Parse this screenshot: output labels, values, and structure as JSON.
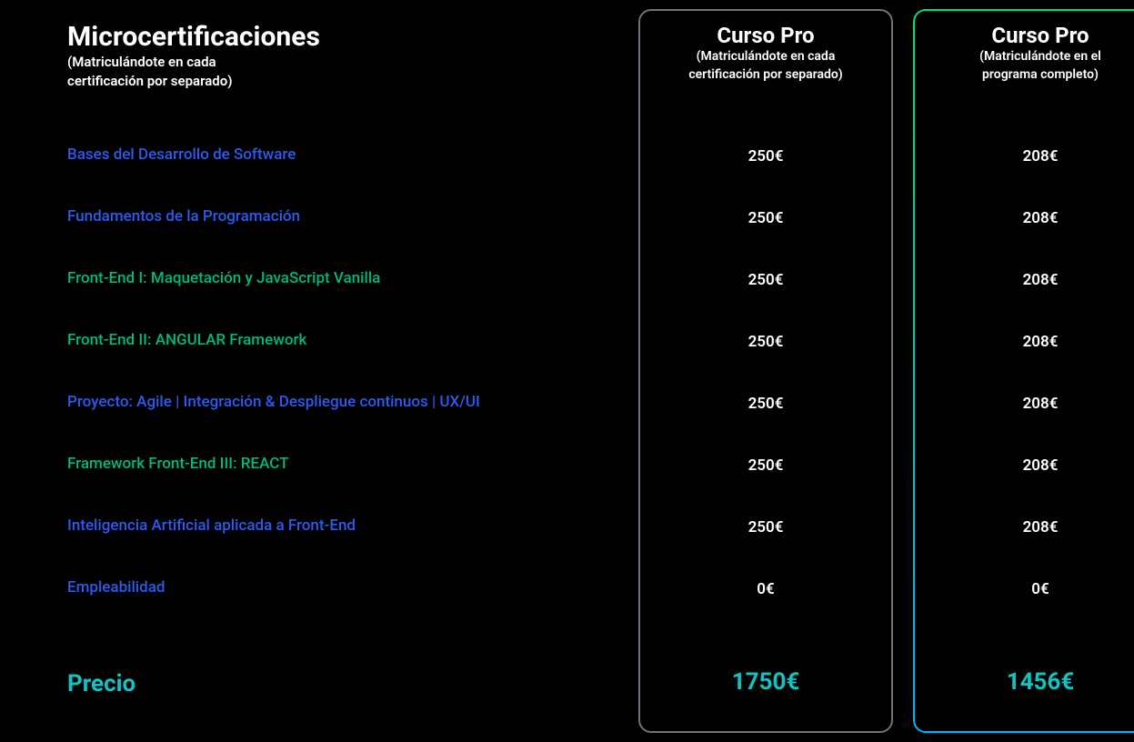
{
  "colors": {
    "background": "#000000",
    "text_white": "#ffffff",
    "link_blue": "#2e5af0",
    "link_green": "#00b97e",
    "total_teal": "#13c2c2",
    "border_gray": "#6b7280",
    "gradient_top": "#00e07a",
    "gradient_bottom": "#00b3ff"
  },
  "labels_column": {
    "title": "Microcertificaciones",
    "subtitle_line1": "(Matriculándote en cada",
    "subtitle_line2": "certificación por separado)"
  },
  "separate_column": {
    "title": "Curso Pro",
    "subtitle_line1": "(Matriculándote en cada",
    "subtitle_line2": "certificación por separado)"
  },
  "full_column": {
    "title": "Curso Pro",
    "subtitle_line1": "(Matriculándote en el",
    "subtitle_line2": "programa completo)"
  },
  "rows": [
    {
      "label": "Bases del Desarrollo de Software",
      "color": "#2e5af0",
      "separate_price": "250€",
      "full_price": "208€"
    },
    {
      "label": "Fundamentos de la Programación",
      "color": "#2e5af0",
      "separate_price": "250€",
      "full_price": "208€"
    },
    {
      "label": "Front-End I: Maquetación y JavaScript Vanilla",
      "color": "#00b97e",
      "separate_price": "250€",
      "full_price": "208€"
    },
    {
      "label": "Front-End II: ANGULAR Framework",
      "color": "#00b97e",
      "separate_price": "250€",
      "full_price": "208€"
    },
    {
      "label": "Proyecto: Agile | Integración & Despliegue continuos | UX/UI",
      "color": "#2e5af0",
      "separate_price": "250€",
      "full_price": "208€"
    },
    {
      "label": "Framework Front-End III: REACT",
      "color": "#00b97e",
      "separate_price": "250€",
      "full_price": "208€"
    },
    {
      "label": "Inteligencia Artificial aplicada a Front-End",
      "color": "#2e5af0",
      "separate_price": "250€",
      "full_price": "208€"
    },
    {
      "label": "Empleabilidad",
      "color": "#2e5af0",
      "separate_price": "0€",
      "full_price": "0€"
    }
  ],
  "total": {
    "label": "Precio",
    "label_color": "#13c2c2",
    "separate_total": "1750€",
    "full_total": "1456€",
    "total_color": "#13c2c2"
  }
}
